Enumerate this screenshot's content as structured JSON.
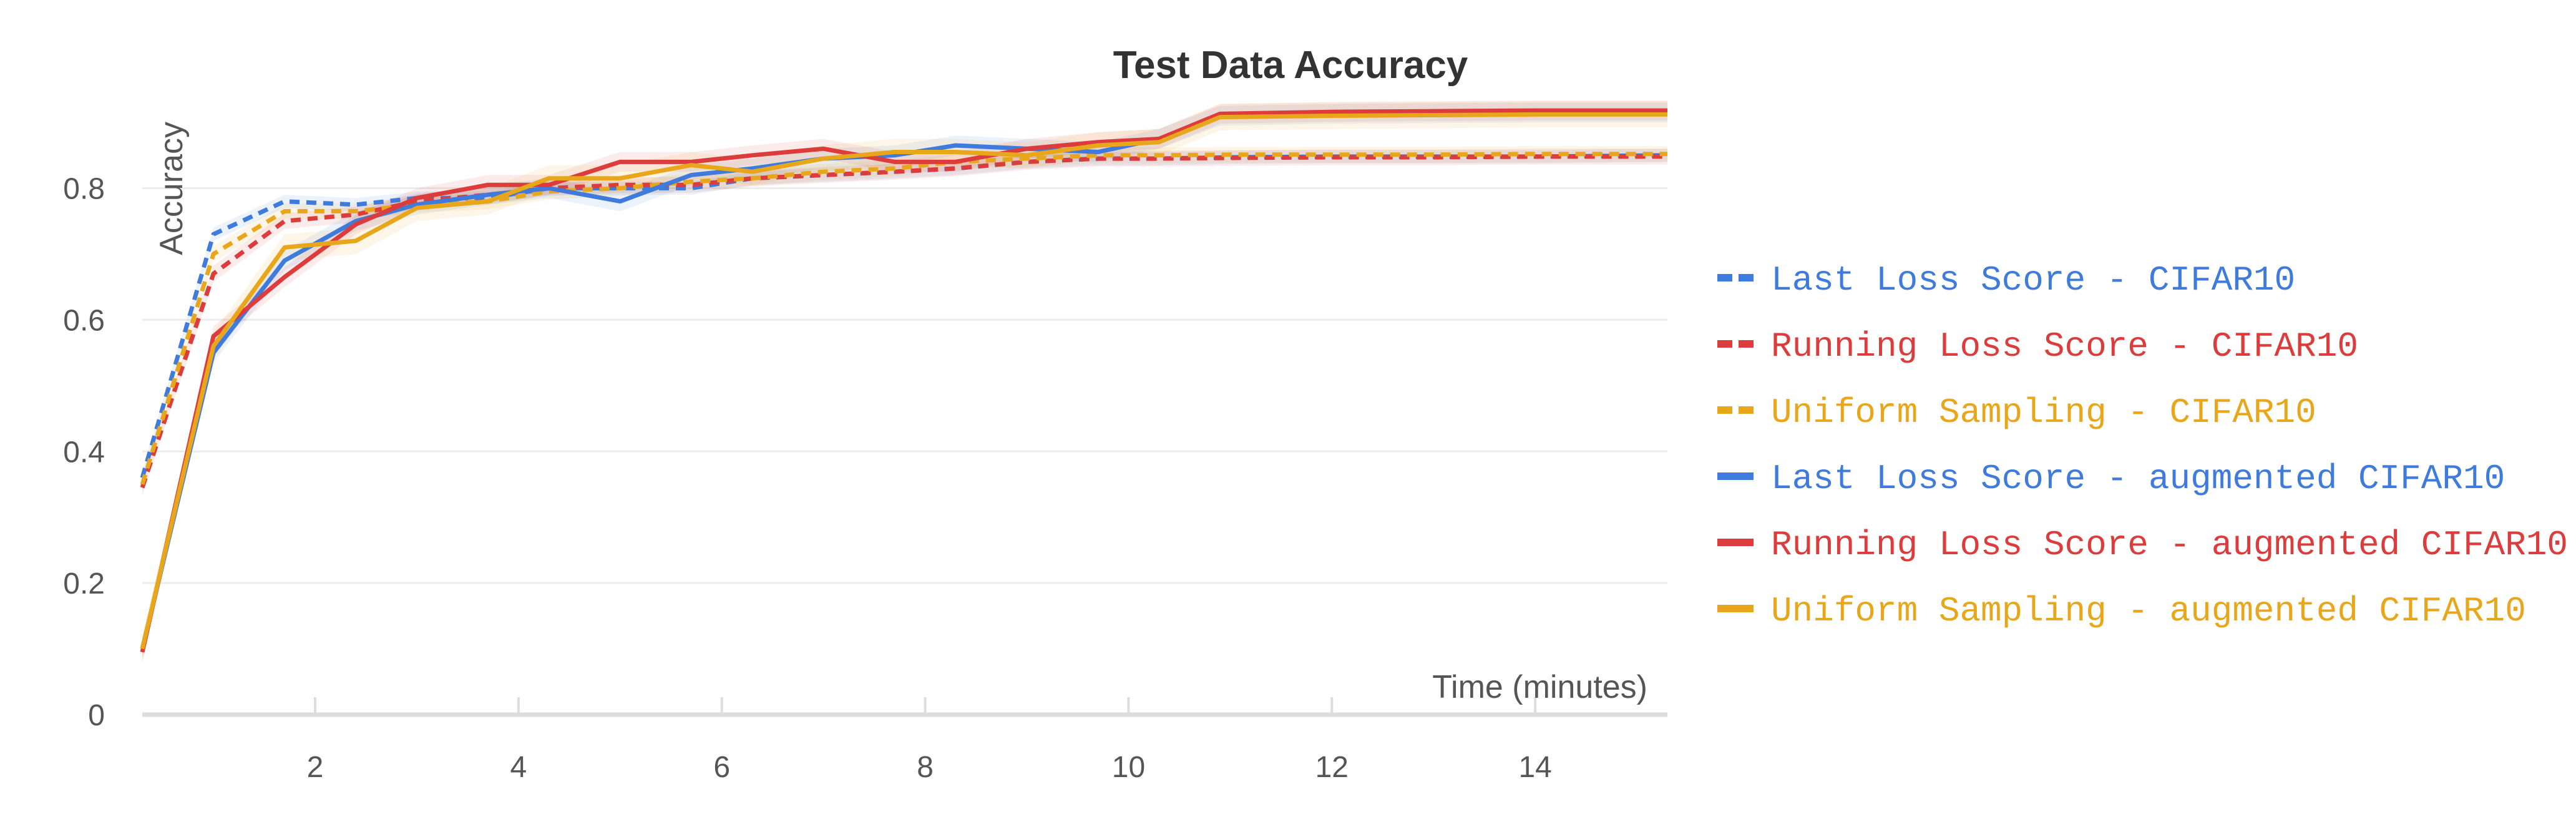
{
  "chart_data": {
    "type": "line",
    "title": "Test Data Accuracy",
    "xlabel": "Time (minutes)",
    "ylabel": "Accuracy",
    "xlim": [
      0.3,
      15.3
    ],
    "ylim": [
      0,
      0.92
    ],
    "x_ticks": [
      2,
      4,
      6,
      8,
      10,
      12,
      14
    ],
    "y_ticks": [
      0,
      0.2,
      0.4,
      0.6,
      0.8
    ],
    "y_tick_labels": [
      "0",
      "0.2",
      "0.4",
      "0.6",
      "0.8"
    ],
    "grid": "horizontal",
    "legend_position": "right",
    "series": [
      {
        "name": "Last Loss Score - CIFAR10",
        "color": "#3f7bdc",
        "dash": true,
        "x": [
          0.3,
          1.0,
          1.7,
          2.4,
          3.0,
          3.7,
          4.3,
          5.0,
          5.7,
          6.3,
          7.0,
          7.7,
          8.3,
          9.0,
          9.7,
          10.3,
          11.0,
          12.0,
          13.0,
          14.0,
          15.3
        ],
        "y": [
          0.36,
          0.73,
          0.78,
          0.775,
          0.785,
          0.785,
          0.8,
          0.8,
          0.8,
          0.815,
          0.82,
          0.825,
          0.83,
          0.84,
          0.845,
          0.845,
          0.847,
          0.848,
          0.848,
          0.848,
          0.85
        ],
        "band": 0.01
      },
      {
        "name": "Running Loss Score - CIFAR10",
        "color": "#dc3c3c",
        "dash": true,
        "x": [
          0.3,
          1.0,
          1.7,
          2.4,
          3.0,
          3.7,
          4.3,
          5.0,
          5.7,
          6.3,
          7.0,
          7.7,
          8.3,
          9.0,
          9.7,
          10.3,
          11.0,
          12.0,
          13.0,
          14.0,
          15.3
        ],
        "y": [
          0.345,
          0.67,
          0.75,
          0.76,
          0.78,
          0.79,
          0.8,
          0.805,
          0.805,
          0.815,
          0.82,
          0.825,
          0.83,
          0.84,
          0.845,
          0.845,
          0.846,
          0.847,
          0.847,
          0.848,
          0.848
        ],
        "band": 0.012
      },
      {
        "name": "Uniform Sampling - CIFAR10",
        "color": "#e8a61a",
        "dash": true,
        "x": [
          0.3,
          1.0,
          1.7,
          2.4,
          3.0,
          3.7,
          4.3,
          5.0,
          5.7,
          6.3,
          7.0,
          7.7,
          8.3,
          9.0,
          9.7,
          10.3,
          11.0,
          12.0,
          13.0,
          14.0,
          15.3
        ],
        "y": [
          0.35,
          0.7,
          0.765,
          0.765,
          0.775,
          0.78,
          0.795,
          0.8,
          0.81,
          0.815,
          0.825,
          0.83,
          0.84,
          0.845,
          0.85,
          0.85,
          0.851,
          0.851,
          0.851,
          0.852,
          0.852
        ],
        "band": 0.012
      },
      {
        "name": "Last Loss Score - augmented CIFAR10",
        "color": "#3f7bdc",
        "dash": false,
        "x": [
          0.3,
          1.0,
          1.7,
          2.4,
          3.0,
          3.7,
          4.3,
          5.0,
          5.7,
          6.3,
          7.0,
          7.7,
          8.3,
          9.0,
          9.7,
          10.3,
          10.9,
          12.0,
          13.0,
          14.0,
          15.3
        ],
        "y": [
          0.1,
          0.55,
          0.69,
          0.75,
          0.775,
          0.79,
          0.8,
          0.78,
          0.82,
          0.83,
          0.845,
          0.85,
          0.865,
          0.86,
          0.855,
          0.875,
          0.91,
          0.913,
          0.914,
          0.915,
          0.915
        ],
        "band": 0.015
      },
      {
        "name": "Running Loss Score - augmented CIFAR10",
        "color": "#dc3c3c",
        "dash": false,
        "x": [
          0.3,
          1.0,
          1.7,
          2.4,
          3.0,
          3.7,
          4.3,
          5.0,
          5.7,
          6.3,
          7.0,
          7.7,
          8.3,
          9.0,
          9.7,
          10.3,
          10.9,
          12.0,
          13.0,
          14.0,
          15.3
        ],
        "y": [
          0.095,
          0.575,
          0.665,
          0.745,
          0.785,
          0.805,
          0.805,
          0.84,
          0.84,
          0.85,
          0.86,
          0.84,
          0.84,
          0.86,
          0.87,
          0.875,
          0.913,
          0.916,
          0.917,
          0.918,
          0.918
        ],
        "band": 0.015
      },
      {
        "name": "Uniform Sampling - augmented CIFAR10",
        "color": "#e8a61a",
        "dash": false,
        "x": [
          0.3,
          1.0,
          1.7,
          2.4,
          3.0,
          3.7,
          4.3,
          5.0,
          5.7,
          6.3,
          7.0,
          7.7,
          8.3,
          9.0,
          9.7,
          10.3,
          10.9,
          12.0,
          13.0,
          14.0,
          15.3
        ],
        "y": [
          0.1,
          0.56,
          0.71,
          0.72,
          0.77,
          0.78,
          0.815,
          0.815,
          0.835,
          0.825,
          0.845,
          0.855,
          0.855,
          0.85,
          0.865,
          0.87,
          0.908,
          0.91,
          0.911,
          0.912,
          0.912
        ],
        "band": 0.02
      }
    ]
  }
}
